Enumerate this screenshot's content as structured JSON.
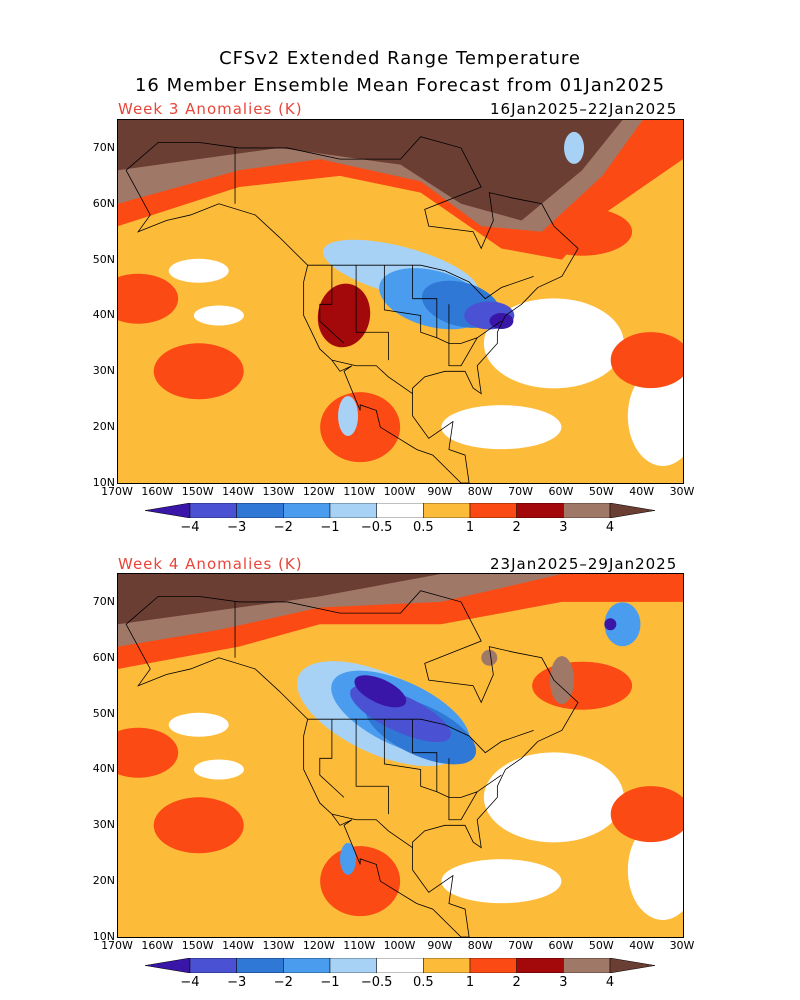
{
  "title_line1": "CFSv2 Extended Range Temperature",
  "title_line2": "16 Member Ensemble Mean Forecast from 01Jan2025",
  "panels": [
    {
      "label": "Week 3 Anomalies (K)",
      "dates": "16Jan2025–22Jan2025"
    },
    {
      "label": "Week 4 Anomalies (K)",
      "dates": "23Jan2025–29Jan2025"
    }
  ],
  "lat_ticks": [
    "70N",
    "60N",
    "50N",
    "40N",
    "30N",
    "20N",
    "10N"
  ],
  "lon_ticks": [
    "170W",
    "160W",
    "150W",
    "140W",
    "130W",
    "120W",
    "110W",
    "100W",
    "90W",
    "80W",
    "70W",
    "60W",
    "50W",
    "40W",
    "30W"
  ],
  "colorbar": {
    "labels": [
      "−4",
      "−3",
      "−2",
      "−1",
      "−0.5",
      "0.5",
      "1",
      "2",
      "3",
      "4"
    ],
    "colors": [
      "#3a16a8",
      "#4a52d3",
      "#2f78d6",
      "#4a9cef",
      "#a8d2f5",
      "#ffffff",
      "#fdbb3a",
      "#fb4a14",
      "#a3090a",
      "#a07868",
      "#6b3e33"
    ]
  }
}
